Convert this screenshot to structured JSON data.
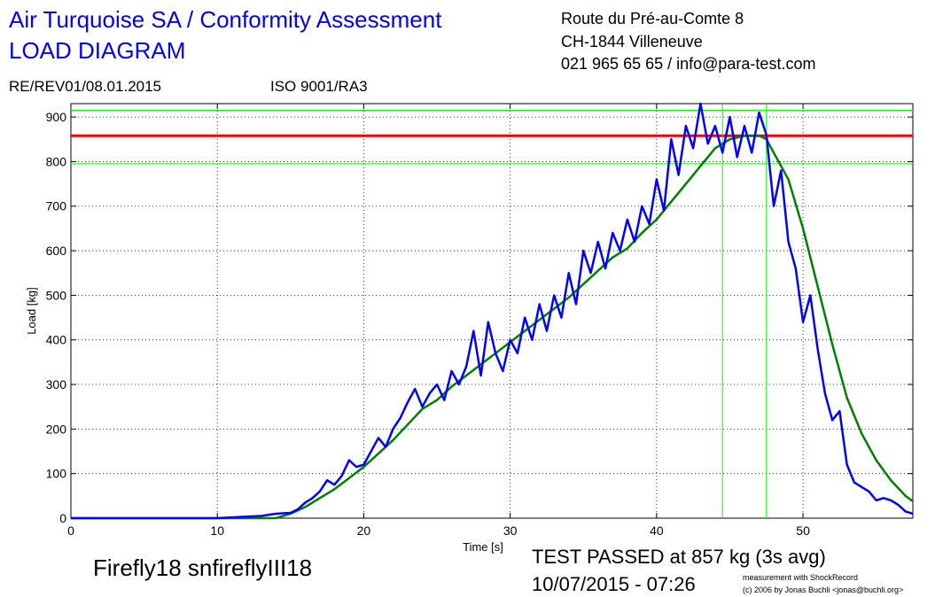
{
  "chart_data": {
    "type": "line",
    "title": "Air Turquoise SA / Conformity Assessment",
    "subtitle": "LOAD DIAGRAM",
    "address": [
      "Route du Pré-au-Comte 8",
      "CH-1844 Villeneuve",
      "021 965 65 65 / info@para-test.com"
    ],
    "revision": "RE/REV01/08.01.2015",
    "standard": "ISO 9001/RA3",
    "x_label": "Time [s]",
    "y_label": "Load [kg]",
    "sample_name": "Firefly18 snfireflyIII18",
    "result": "TEST PASSED at 857 kg (3s avg)",
    "timestamp": "10/07/2015 - 07:26",
    "credits": [
      "measurement with ShockRecord",
      "(c) 2006 by Jonas Buchli <jonas@buchli.org>"
    ],
    "xlim": [
      0,
      57.5
    ],
    "ylim": [
      0,
      930
    ],
    "xticks": [
      0,
      10,
      20,
      30,
      40,
      50
    ],
    "yticks": [
      0,
      100,
      200,
      300,
      400,
      500,
      600,
      700,
      800,
      900
    ],
    "grid": true,
    "hlines": [
      {
        "value": 858,
        "color": "#ff0000"
      },
      {
        "value": 795,
        "color": "#00ff00"
      },
      {
        "value": 915,
        "color": "#00ff00"
      }
    ],
    "vlines": [
      {
        "value": 44.5,
        "color": "#00ff00"
      },
      {
        "value": 47.5,
        "color": "#00ff00"
      }
    ],
    "series": [
      {
        "color": "#0000ff",
        "x": [
          0,
          10,
          13,
          14,
          15,
          15.5,
          16,
          16.5,
          17,
          17.5,
          18,
          18.5,
          19,
          19.5,
          20,
          20.5,
          21,
          21.5,
          22,
          22.5,
          23,
          23.5,
          24,
          24.5,
          25,
          25.5,
          26,
          26.5,
          27,
          27.5,
          28,
          28.5,
          29,
          29.5,
          30,
          30.5,
          31,
          31.5,
          32,
          32.5,
          33,
          33.5,
          34,
          34.5,
          35,
          35.5,
          36,
          36.5,
          37,
          37.5,
          38,
          38.5,
          39,
          39.5,
          40,
          40.5,
          41,
          41.5,
          42,
          42.5,
          43,
          43.5,
          44,
          44.5,
          45,
          45.5,
          46,
          46.5,
          47,
          47.5,
          48,
          48.5,
          49,
          49.5,
          50,
          50.5,
          51,
          51.5,
          52,
          52.5,
          53,
          53.5,
          54,
          54.5,
          55,
          55.5,
          56,
          56.5,
          57,
          57.5
        ],
        "values": [
          0,
          0,
          5,
          10,
          12,
          20,
          35,
          45,
          60,
          85,
          75,
          95,
          130,
          115,
          120,
          150,
          180,
          160,
          200,
          225,
          260,
          290,
          250,
          280,
          300,
          265,
          330,
          300,
          340,
          420,
          320,
          440,
          370,
          330,
          400,
          370,
          450,
          400,
          480,
          420,
          500,
          450,
          550,
          480,
          600,
          550,
          620,
          560,
          640,
          600,
          670,
          620,
          700,
          660,
          760,
          690,
          850,
          770,
          880,
          830,
          930,
          840,
          880,
          820,
          900,
          810,
          880,
          820,
          910,
          860,
          700,
          780,
          620,
          560,
          440,
          500,
          380,
          280,
          220,
          240,
          120,
          80,
          70,
          60,
          40,
          45,
          40,
          30,
          15,
          10
        ]
      },
      {
        "color": "#008000",
        "x": [
          0,
          14,
          15,
          16,
          17,
          18,
          19,
          20,
          21,
          22,
          23,
          24,
          25,
          26,
          27,
          28,
          29,
          30,
          31,
          32,
          33,
          34,
          35,
          36,
          37,
          38,
          39,
          40,
          41,
          42,
          43,
          44,
          45,
          46,
          47,
          47.5,
          48,
          49,
          50,
          51,
          52,
          53,
          54,
          55,
          56,
          57,
          57.5
        ],
        "values": [
          0,
          0,
          10,
          25,
          45,
          65,
          90,
          115,
          145,
          175,
          210,
          245,
          265,
          295,
          320,
          345,
          370,
          395,
          420,
          445,
          470,
          495,
          525,
          555,
          585,
          605,
          640,
          670,
          710,
          750,
          790,
          830,
          850,
          858,
          858,
          850,
          820,
          760,
          650,
          520,
          390,
          270,
          190,
          130,
          85,
          50,
          38
        ]
      }
    ]
  }
}
